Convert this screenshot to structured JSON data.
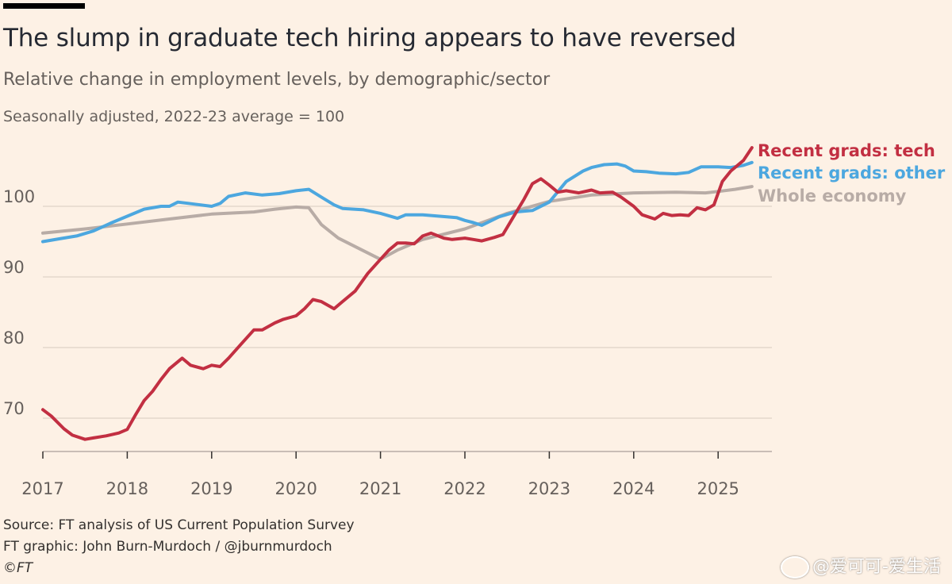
{
  "title": "The slump in graduate tech hiring appears to have reversed",
  "subtitle": "Relative change in employment levels, by demographic/sector",
  "note": "Seasonally adjusted, 2022-23 average = 100",
  "footer": {
    "source": "Source: FT analysis of US Current Population Survey",
    "credit": "FT graphic: John Burn-Murdoch / @jburnmurdoch",
    "copyright": "©FT"
  },
  "watermark": "@爱可可-爱生活",
  "chart_data": {
    "type": "line",
    "y_ticks": [
      70,
      80,
      90,
      100
    ],
    "y_tick_labels": [
      "70",
      "80",
      "90",
      "100"
    ],
    "ylim": [
      63,
      109
    ],
    "x_ticks": [
      2017,
      2018,
      2019,
      2020,
      2021,
      2022,
      2023,
      2024,
      2025
    ],
    "x_tick_labels": [
      "2017",
      "2018",
      "2019",
      "2020",
      "2021",
      "2022",
      "2023",
      "2024",
      "2025"
    ],
    "xlim": [
      2017,
      2025.9
    ],
    "grid": true,
    "legend": "direct labels at line ends (right)",
    "series": [
      {
        "name": "Whole economy",
        "color": "#B8ACA6",
        "x": [
          2017.0,
          2017.5,
          2018.0,
          2018.5,
          2019.0,
          2019.5,
          2019.75,
          2020.0,
          2020.15,
          2020.3,
          2020.5,
          2020.75,
          2021.0,
          2021.2,
          2021.5,
          2022.0,
          2022.5,
          2023.0,
          2023.5,
          2024.0,
          2024.5,
          2024.85,
          2025.0,
          2025.2,
          2025.4
        ],
        "y": [
          96.2,
          96.8,
          97.5,
          98.2,
          98.9,
          99.2,
          99.6,
          99.9,
          99.8,
          97.4,
          95.5,
          94.0,
          92.5,
          93.8,
          95.3,
          96.8,
          99.0,
          100.7,
          101.6,
          101.9,
          102.0,
          101.9,
          102.1,
          102.4,
          102.8
        ]
      },
      {
        "name": "Recent grads: other",
        "color": "#4CA7DF",
        "x": [
          2017.0,
          2017.2,
          2017.4,
          2017.6,
          2017.8,
          2018.0,
          2018.2,
          2018.4,
          2018.5,
          2018.6,
          2018.8,
          2019.0,
          2019.1,
          2019.2,
          2019.4,
          2019.6,
          2019.8,
          2020.0,
          2020.15,
          2020.3,
          2020.45,
          2020.55,
          2020.8,
          2021.0,
          2021.2,
          2021.3,
          2021.5,
          2021.7,
          2021.9,
          2022.0,
          2022.1,
          2022.2,
          2022.4,
          2022.6,
          2022.8,
          2023.0,
          2023.2,
          2023.4,
          2023.5,
          2023.65,
          2023.8,
          2023.9,
          2024.0,
          2024.15,
          2024.3,
          2024.5,
          2024.65,
          2024.8,
          2025.0,
          2025.15,
          2025.3,
          2025.4
        ],
        "y": [
          95.0,
          95.4,
          95.8,
          96.5,
          97.6,
          98.6,
          99.6,
          100.0,
          100.0,
          100.6,
          100.3,
          100.0,
          100.4,
          101.4,
          101.9,
          101.6,
          101.8,
          102.2,
          102.4,
          101.3,
          100.2,
          99.7,
          99.5,
          99.0,
          98.3,
          98.8,
          98.8,
          98.6,
          98.4,
          98.0,
          97.7,
          97.3,
          98.5,
          99.2,
          99.4,
          100.6,
          103.5,
          105.0,
          105.5,
          105.9,
          106.0,
          105.7,
          105.0,
          104.9,
          104.7,
          104.6,
          104.8,
          105.6,
          105.6,
          105.5,
          105.8,
          106.2
        ]
      },
      {
        "name": "Recent grads: tech",
        "color": "#C22F42",
        "x": [
          2017.0,
          2017.1,
          2017.25,
          2017.35,
          2017.5,
          2017.6,
          2017.75,
          2017.9,
          2018.0,
          2018.1,
          2018.2,
          2018.3,
          2018.4,
          2018.5,
          2018.65,
          2018.75,
          2018.9,
          2019.0,
          2019.1,
          2019.2,
          2019.35,
          2019.5,
          2019.6,
          2019.75,
          2019.85,
          2020.0,
          2020.1,
          2020.2,
          2020.3,
          2020.45,
          2020.55,
          2020.7,
          2020.85,
          2021.0,
          2021.1,
          2021.2,
          2021.3,
          2021.4,
          2021.5,
          2021.6,
          2021.75,
          2021.85,
          2022.0,
          2022.1,
          2022.2,
          2022.35,
          2022.45,
          2022.55,
          2022.7,
          2022.8,
          2022.9,
          2023.0,
          2023.1,
          2023.2,
          2023.35,
          2023.5,
          2023.6,
          2023.75,
          2023.85,
          2024.0,
          2024.1,
          2024.25,
          2024.35,
          2024.45,
          2024.55,
          2024.65,
          2024.75,
          2024.85,
          2024.95,
          2025.05,
          2025.15,
          2025.3,
          2025.4
        ],
        "y": [
          71.2,
          70.3,
          68.5,
          67.6,
          67.0,
          67.2,
          67.5,
          67.9,
          68.4,
          70.5,
          72.5,
          73.8,
          75.5,
          77.0,
          78.5,
          77.5,
          77.0,
          77.5,
          77.3,
          78.5,
          80.5,
          82.5,
          82.5,
          83.5,
          84.0,
          84.5,
          85.5,
          86.8,
          86.5,
          85.5,
          86.5,
          88.0,
          90.5,
          92.5,
          93.8,
          94.8,
          94.8,
          94.7,
          95.8,
          96.2,
          95.5,
          95.3,
          95.5,
          95.3,
          95.1,
          95.6,
          96.0,
          98.0,
          101.0,
          103.2,
          103.9,
          103.0,
          102.0,
          102.2,
          101.9,
          102.3,
          101.9,
          102.0,
          101.3,
          100.0,
          98.8,
          98.2,
          99.0,
          98.7,
          98.8,
          98.7,
          99.8,
          99.5,
          100.2,
          103.5,
          105.0,
          106.5,
          108.3
        ]
      }
    ],
    "labels": {
      "tech": "Recent grads: tech",
      "other": "Recent grads: other",
      "whole": "Whole economy"
    }
  }
}
